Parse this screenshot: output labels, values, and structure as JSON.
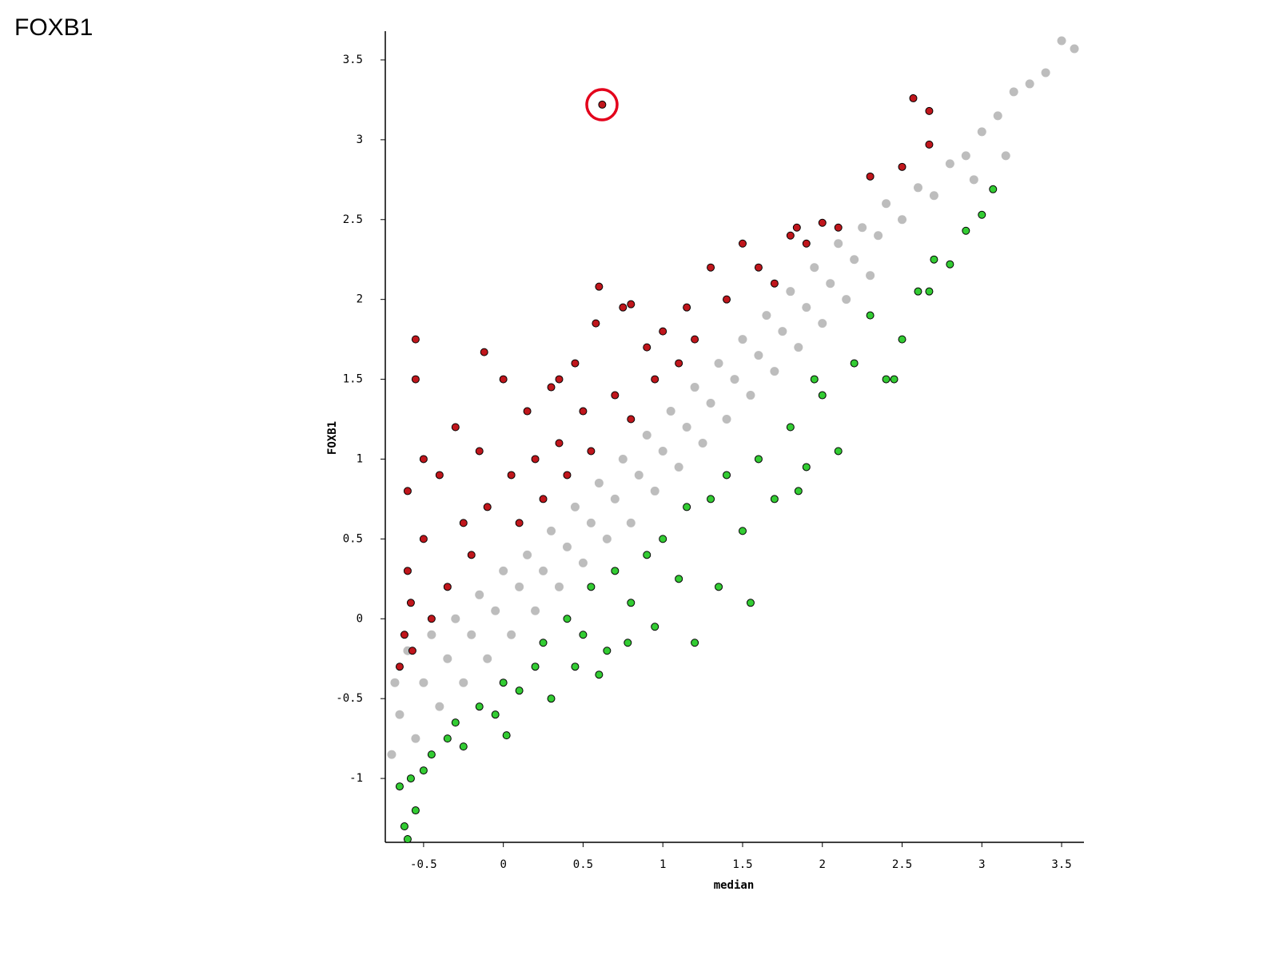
{
  "title": "FOXB1",
  "chart_data": {
    "type": "scatter",
    "xlabel": "median",
    "ylabel": "FOXB1",
    "xlim": [
      -0.74,
      3.64
    ],
    "ylim": [
      -1.4,
      3.68
    ],
    "xticks": [
      -0.5,
      0,
      0.5,
      1,
      1.5,
      2,
      2.5,
      3,
      3.5
    ],
    "yticks": [
      -1,
      -0.5,
      0,
      0.5,
      1,
      1.5,
      2,
      2.5,
      3,
      3.5
    ],
    "series": [
      {
        "color": "#bdbdbd",
        "x": [
          -0.7,
          -0.68,
          -0.65,
          -0.6,
          -0.55,
          -0.5,
          -0.45,
          -0.4,
          -0.35,
          -0.3,
          -0.25,
          -0.2,
          -0.15,
          -0.1,
          -0.05,
          0,
          0.05,
          0.1,
          0.15,
          0.2,
          0.25,
          0.3,
          0.35,
          0.4,
          0.45,
          0.5,
          0.55,
          0.6,
          0.65,
          0.7,
          0.75,
          0.8,
          0.85,
          0.9,
          0.95,
          1.0,
          1.05,
          1.1,
          1.15,
          1.2,
          1.25,
          1.3,
          1.35,
          1.4,
          1.45,
          1.5,
          1.55,
          1.6,
          1.65,
          1.7,
          1.75,
          1.8,
          1.85,
          1.9,
          1.95,
          2.0,
          2.05,
          2.1,
          2.15,
          2.2,
          2.25,
          2.3,
          2.35,
          2.4,
          2.5,
          2.6,
          2.7,
          2.8,
          2.9,
          3.0,
          3.1,
          3.2,
          3.3,
          3.4,
          3.5,
          3.58,
          3.15,
          2.95
        ],
        "values": [
          -0.85,
          -0.4,
          -0.6,
          -0.2,
          -0.75,
          -0.4,
          -0.1,
          -0.55,
          -0.25,
          0.0,
          -0.4,
          -0.1,
          0.15,
          -0.25,
          0.05,
          0.3,
          -0.1,
          0.2,
          0.4,
          0.05,
          0.3,
          0.55,
          0.2,
          0.45,
          0.7,
          0.35,
          0.6,
          0.85,
          0.5,
          0.75,
          1.0,
          0.6,
          0.9,
          1.15,
          0.8,
          1.05,
          1.3,
          0.95,
          1.2,
          1.45,
          1.1,
          1.35,
          1.6,
          1.25,
          1.5,
          1.75,
          1.4,
          1.65,
          1.9,
          1.55,
          1.8,
          2.05,
          1.7,
          1.95,
          2.2,
          1.85,
          2.1,
          2.35,
          2.0,
          2.25,
          2.45,
          2.15,
          2.4,
          2.6,
          2.5,
          2.7,
          2.65,
          2.85,
          2.9,
          3.05,
          3.15,
          3.3,
          3.35,
          3.42,
          3.62,
          3.57,
          2.9,
          2.75
        ]
      },
      {
        "color": "#c0161c",
        "edgecolor": "#000000",
        "x": [
          -0.65,
          -0.62,
          -0.6,
          -0.6,
          -0.58,
          -0.55,
          -0.55,
          -0.57,
          -0.5,
          -0.5,
          -0.45,
          -0.4,
          -0.35,
          -0.3,
          -0.25,
          -0.2,
          -0.15,
          -0.1,
          -0.12,
          0.0,
          0.05,
          0.1,
          0.15,
          0.2,
          0.25,
          0.3,
          0.35,
          0.4,
          0.45,
          0.5,
          0.55,
          0.58,
          0.6,
          0.62,
          0.7,
          0.75,
          0.8,
          0.9,
          0.95,
          1.0,
          1.1,
          1.15,
          1.3,
          1.4,
          1.5,
          1.6,
          1.7,
          1.8,
          1.9,
          2.0,
          2.1,
          2.3,
          2.5,
          2.57,
          2.67,
          2.67,
          1.84,
          0.8,
          1.2,
          0.35
        ],
        "values": [
          -0.3,
          -0.1,
          0.3,
          0.8,
          0.1,
          1.75,
          1.5,
          -0.2,
          0.5,
          1.0,
          0.0,
          0.9,
          0.2,
          1.2,
          0.6,
          0.4,
          1.05,
          0.7,
          1.67,
          1.5,
          0.9,
          0.6,
          1.3,
          1.0,
          0.75,
          1.45,
          1.1,
          0.9,
          1.6,
          1.3,
          1.05,
          1.85,
          2.08,
          3.22,
          1.4,
          1.95,
          1.25,
          1.7,
          1.5,
          1.8,
          1.6,
          1.95,
          2.2,
          2.0,
          2.35,
          2.2,
          2.1,
          2.4,
          2.35,
          2.48,
          2.45,
          2.77,
          2.83,
          3.26,
          3.18,
          2.97,
          2.45,
          1.97,
          1.75,
          1.5
        ]
      },
      {
        "color": "#33cc33",
        "edgecolor": "#000000",
        "x": [
          -0.65,
          -0.62,
          -0.6,
          -0.58,
          -0.55,
          -0.5,
          -0.45,
          -0.35,
          -0.3,
          -0.25,
          -0.15,
          -0.05,
          0.0,
          0.02,
          0.1,
          0.2,
          0.25,
          0.3,
          0.4,
          0.45,
          0.5,
          0.55,
          0.6,
          0.65,
          0.7,
          0.78,
          0.8,
          0.9,
          0.95,
          1.0,
          1.1,
          1.15,
          1.2,
          1.3,
          1.35,
          1.4,
          1.5,
          1.55,
          1.6,
          1.7,
          1.8,
          1.85,
          1.9,
          2.0,
          2.1,
          2.2,
          2.3,
          2.4,
          2.5,
          2.6,
          2.7,
          2.8,
          2.9,
          3.0,
          3.07,
          2.45,
          1.95,
          2.67
        ],
        "values": [
          -1.05,
          -1.3,
          -1.38,
          -1.0,
          -1.2,
          -0.95,
          -0.85,
          -0.75,
          -0.65,
          -0.8,
          -0.55,
          -0.6,
          -0.4,
          -0.73,
          -0.45,
          -0.3,
          -0.15,
          -0.5,
          0.0,
          -0.3,
          -0.1,
          0.2,
          -0.35,
          -0.2,
          0.3,
          -0.15,
          0.1,
          0.4,
          -0.05,
          0.5,
          0.25,
          0.7,
          -0.15,
          0.75,
          0.2,
          0.9,
          0.55,
          0.1,
          1.0,
          0.75,
          1.2,
          0.8,
          0.95,
          1.4,
          1.05,
          1.6,
          1.9,
          1.5,
          1.75,
          2.05,
          2.25,
          2.22,
          2.43,
          2.53,
          2.69,
          1.5,
          1.5,
          2.05
        ]
      }
    ]
  }
}
